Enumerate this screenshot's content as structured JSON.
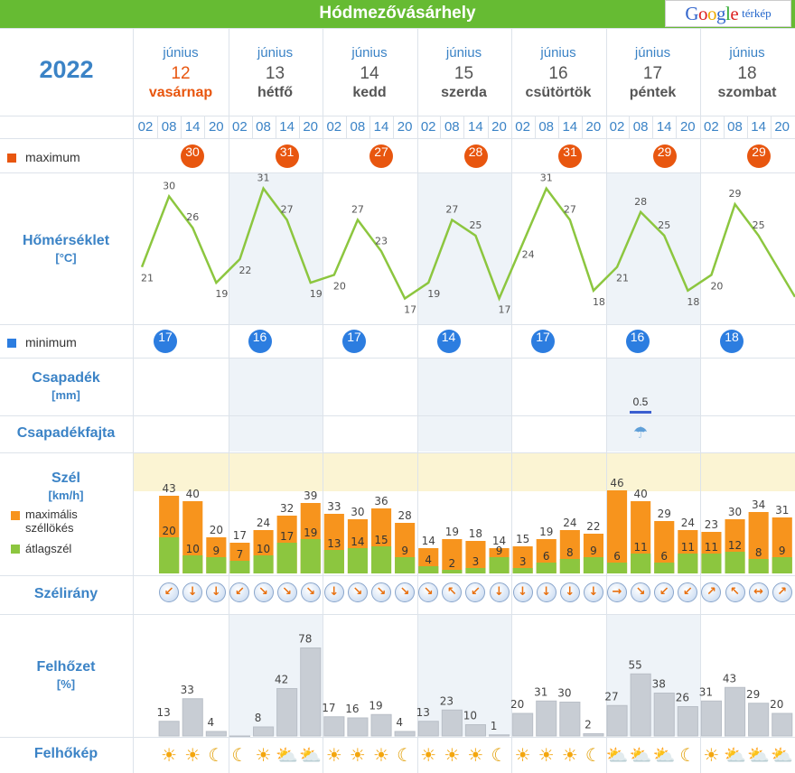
{
  "header": {
    "title": "Hódmezővásárhely",
    "google_label": "Google",
    "map_label": "térkép"
  },
  "year": "2022",
  "days": [
    {
      "month": "június",
      "day": "12",
      "weekday": "vasárnap"
    },
    {
      "month": "június",
      "day": "13",
      "weekday": "hétfő"
    },
    {
      "month": "június",
      "day": "14",
      "weekday": "kedd"
    },
    {
      "month": "június",
      "day": "15",
      "weekday": "szerda"
    },
    {
      "month": "június",
      "day": "16",
      "weekday": "csütörtök"
    },
    {
      "month": "június",
      "day": "17",
      "weekday": "péntek"
    },
    {
      "month": "június",
      "day": "18",
      "weekday": "szombat"
    }
  ],
  "hours": [
    "02",
    "08",
    "14",
    "20"
  ],
  "labels": {
    "maximum": "maximum",
    "minimum": "minimum",
    "temp": "Hőmérséklet",
    "temp_unit": "[°C]",
    "precip": "Csapadék",
    "precip_unit": "[mm]",
    "precip_type": "Csapadékfajta",
    "wind": "Szél",
    "wind_unit": "[km/h]",
    "gust_legend": "maximális széllökés",
    "avg_legend": "átlagszél",
    "wind_dir": "Szélirány",
    "cloud": "Felhőzet",
    "cloud_unit": "[%]",
    "cloud_image": "Felhőkép"
  },
  "colors": {
    "max": "#e8560f",
    "min": "#2c7de0",
    "gust": "#f7941d",
    "avg": "#8cc63f",
    "temp_line": "#8cc63f",
    "cloud_bar": "#c8cdd4"
  },
  "max_temps": [
    "30",
    "31",
    "27",
    "28",
    "31",
    "29",
    "29"
  ],
  "min_temps": [
    "17",
    "16",
    "17",
    "14",
    "17",
    "16",
    "18"
  ],
  "chart_data": [
    {
      "type": "line",
      "title": "Hőmérséklet",
      "ylabel": "[°C]",
      "x": [
        "12 02",
        "12 08",
        "12 14",
        "12 20",
        "13 02",
        "13 08",
        "13 14",
        "13 20",
        "14 02",
        "14 08",
        "14 14",
        "14 20",
        "15 02",
        "15 08",
        "15 14",
        "15 20",
        "16 02",
        "16 08",
        "16 14",
        "16 20",
        "17 02",
        "17 08",
        "17 14",
        "17 20",
        "18 02",
        "18 08",
        "18 14",
        "18 20"
      ],
      "series": [
        {
          "values": [
            21,
            30,
            26,
            19,
            22,
            31,
            27,
            19,
            20,
            27,
            23,
            17,
            19,
            27,
            25,
            17,
            24,
            31,
            27,
            18,
            21,
            28,
            25,
            18,
            20,
            29,
            25,
            null
          ]
        }
      ]
    },
    {
      "type": "bar",
      "title": "Szél",
      "ylabel": "[km/h]",
      "series": [
        {
          "name": "maximális széllökés",
          "values": [
            43,
            40,
            20,
            17,
            24,
            32,
            39,
            33,
            30,
            36,
            28,
            14,
            19,
            18,
            14,
            15,
            19,
            24,
            22,
            46,
            40,
            29,
            24,
            23,
            30,
            34,
            31
          ]
        },
        {
          "name": "átlagszél",
          "values": [
            20,
            10,
            9,
            7,
            10,
            17,
            19,
            13,
            14,
            15,
            9,
            4,
            2,
            3,
            9,
            3,
            6,
            8,
            9,
            6,
            11,
            6,
            11,
            11,
            12,
            8,
            9
          ]
        }
      ]
    },
    {
      "type": "bar",
      "title": "Felhőzet",
      "ylabel": "[%]",
      "values": [
        13,
        33,
        4,
        0,
        8,
        42,
        78,
        17,
        16,
        19,
        4,
        13,
        23,
        10,
        1,
        20,
        31,
        30,
        2,
        27,
        55,
        38,
        26,
        31,
        43,
        29,
        20
      ]
    },
    {
      "type": "bar",
      "title": "Csapadék",
      "ylabel": "[mm]",
      "values": [
        0.5
      ]
    }
  ],
  "wind_dirs": [
    "↙",
    "↓",
    "↓",
    "↙",
    "↘",
    "↘",
    "↘",
    "↓",
    "↘",
    "↘",
    "↘",
    "↘",
    "↖",
    "↙",
    "↓",
    "↓",
    "↓",
    "↓",
    "↓",
    "→",
    "↘",
    "↙",
    "↙",
    "↗",
    "↖",
    "↔",
    "↗"
  ],
  "cloud_icons": [
    "sun",
    "sun",
    "moon",
    "moon",
    "sun",
    "pcloud",
    "pcloud",
    "sun",
    "sun",
    "sun",
    "moon",
    "sun",
    "sun",
    "sun",
    "moon",
    "sun",
    "sun",
    "sun",
    "moon",
    "pcloud",
    "pcloud",
    "pcloud",
    "moon",
    "sun",
    "pcloud",
    "pcloud",
    "pcloud"
  ],
  "precip_icon": "rain-shower-icon",
  "precip_value": "0.5"
}
